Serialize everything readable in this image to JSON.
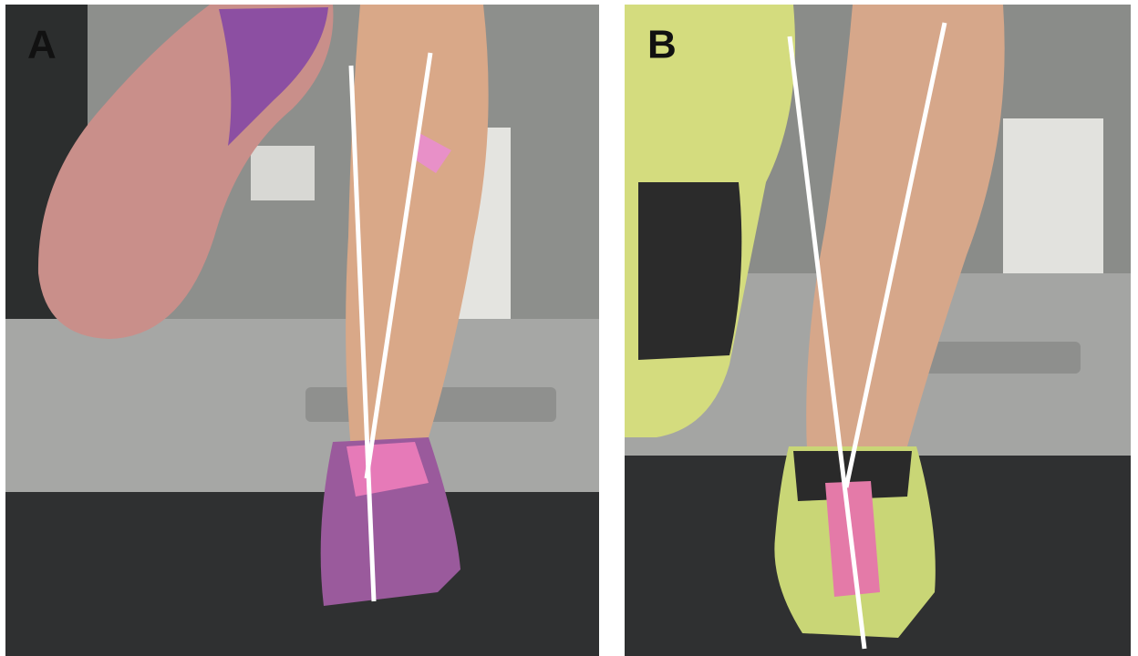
{
  "panels": [
    {
      "label": "A"
    },
    {
      "label": "B"
    }
  ]
}
